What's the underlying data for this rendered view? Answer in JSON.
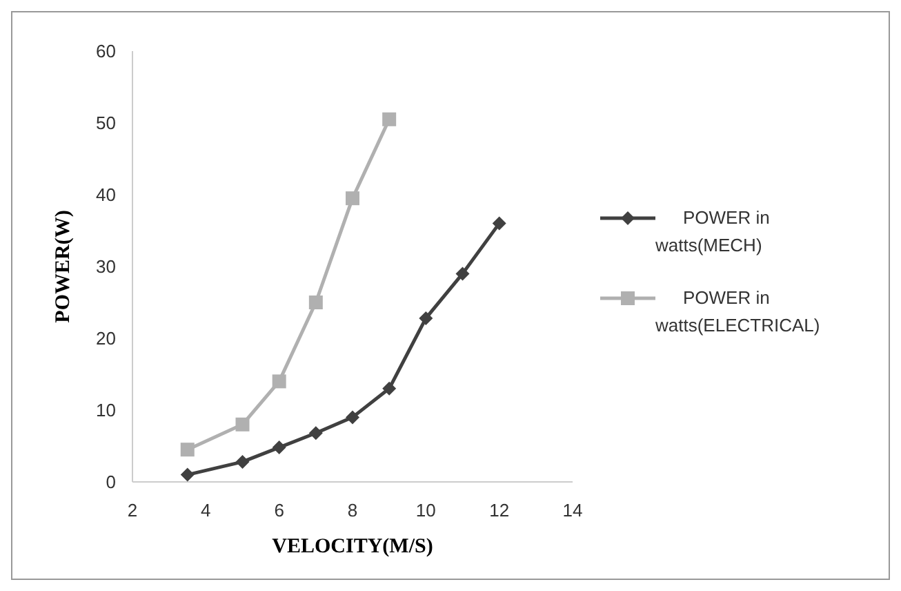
{
  "chart_data": {
    "type": "line",
    "xlabel": "VELOCITY(M/S)",
    "ylabel": "POWER(W)",
    "x": [
      3.5,
      5,
      6,
      7,
      8,
      9,
      10,
      11,
      12
    ],
    "series": [
      {
        "name": "POWER in watts(MECH)",
        "color": "#404040",
        "marker": "diamond",
        "values": [
          1,
          2.8,
          4.8,
          6.8,
          9,
          13,
          22.8,
          29,
          36
        ]
      },
      {
        "name": "POWER in watts(ELECTRICAL)",
        "color": "#b0b0b0",
        "marker": "square",
        "x": [
          3.5,
          5,
          6,
          7,
          8,
          9
        ],
        "values": [
          4.5,
          8,
          14,
          25,
          39.5,
          50.5
        ]
      }
    ],
    "xlim": [
      2,
      14
    ],
    "xticks": [
      2,
      4,
      6,
      8,
      10,
      12,
      14
    ],
    "ylim": [
      0,
      60
    ],
    "yticks": [
      0,
      10,
      20,
      30,
      40,
      50,
      60
    ],
    "grid": false,
    "legend": "right",
    "line_style": "solid"
  }
}
